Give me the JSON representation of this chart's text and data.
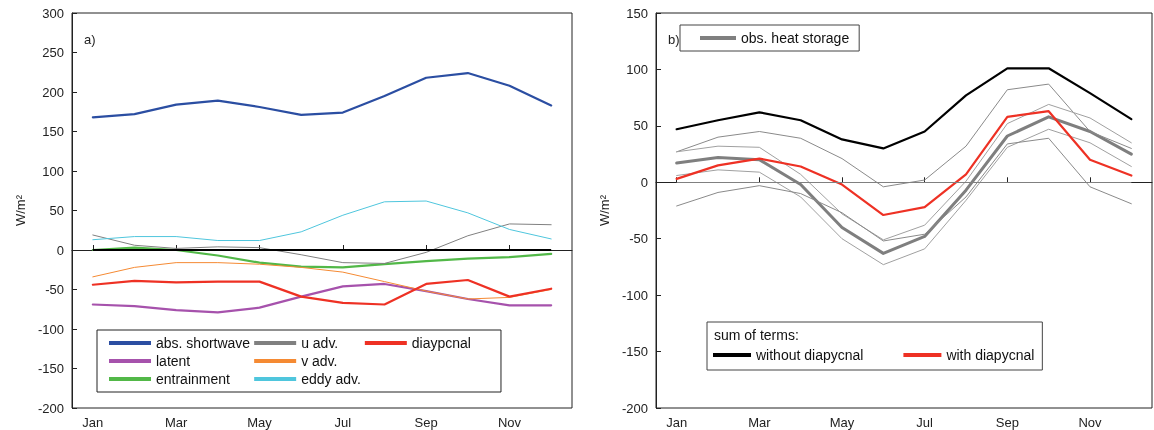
{
  "chart_data": [
    {
      "type": "line",
      "ylabel": "W/m²",
      "annotations": [
        "a)"
      ],
      "legend": "bottom",
      "categories": [
        "Jan",
        null,
        "Mar",
        null,
        "May",
        null,
        "Jul",
        null,
        "Sep",
        null,
        "Nov",
        null
      ],
      "ylim": [
        -200,
        300
      ],
      "yticks": [
        -200,
        -150,
        -100,
        -50,
        0,
        50,
        100,
        150,
        200,
        250,
        300
      ],
      "ref_lines": [
        {
          "axis": "y",
          "value": 0,
          "color": "#000000"
        }
      ],
      "series": [
        {
          "name": "abs. shortwave",
          "color": "#2b4ea2",
          "values": [
            168,
            172,
            184,
            189,
            181,
            171,
            174,
            195,
            218,
            224,
            208,
            183
          ]
        },
        {
          "name": "latent",
          "color": "#a652ac",
          "values": [
            -69,
            -71,
            -76,
            -79,
            -73,
            -59,
            -46,
            -43,
            -52,
            -62,
            -70,
            -70
          ]
        },
        {
          "name": "entrainment",
          "color": "#52b848",
          "values": [
            0,
            3,
            0,
            -7,
            -16,
            -21,
            -22,
            -18,
            -14,
            -11,
            -9,
            -5
          ]
        },
        {
          "name": "u adv.",
          "color": "#808080",
          "values": [
            19,
            6,
            2,
            4,
            3,
            -6,
            -16,
            -17,
            -3,
            18,
            33,
            32
          ]
        },
        {
          "name": "v adv.",
          "color": "#f58a33",
          "values": [
            -34,
            -22,
            -16,
            -16,
            -18,
            -22,
            -28,
            -40,
            -52,
            -62,
            -60,
            -50
          ]
        },
        {
          "name": "eddy adv.",
          "color": "#4fc6dd",
          "values": [
            13,
            17,
            17,
            12,
            12,
            23,
            44,
            61,
            62,
            47,
            26,
            14
          ]
        },
        {
          "name": "diaypcnal",
          "color": "#ee3124",
          "values": [
            -44,
            -39,
            -41,
            -40,
            -40,
            -59,
            -67,
            -69,
            -43,
            -38,
            -59,
            -49
          ]
        }
      ]
    },
    {
      "type": "line",
      "ylabel": "W/m²",
      "annotations": [
        "b)"
      ],
      "legend": "top left",
      "legend_title": "sum of terms:",
      "categories": [
        "Jan",
        null,
        "Mar",
        null,
        "May",
        null,
        "Jul",
        null,
        "Sep",
        null,
        "Nov",
        null
      ],
      "ylim": [
        -200,
        150
      ],
      "yticks": [
        -200,
        -150,
        -100,
        -50,
        0,
        50,
        100,
        150
      ],
      "ref_lines": [
        {
          "axis": "y",
          "value": 0,
          "color": "#808080"
        }
      ],
      "series": [
        {
          "name": "obs. heat storage",
          "color": "#7f7f7f",
          "values": [
            17,
            22,
            20,
            -2,
            -40,
            -63,
            -48,
            -7,
            41,
            58,
            45,
            25
          ]
        },
        {
          "color": "#8a8a8a",
          "values": [
            27,
            40,
            45,
            39,
            21,
            -4,
            2,
            32,
            82,
            87,
            45,
            30
          ]
        },
        {
          "color": "#a0a0a0",
          "values": [
            27,
            32,
            31,
            7,
            -28,
            -51,
            -38,
            1,
            52,
            69,
            57,
            35
          ]
        },
        {
          "color": "#a0a0a0",
          "values": [
            6,
            11,
            9,
            -13,
            -50,
            -73,
            -59,
            -16,
            31,
            47,
            35,
            14
          ]
        },
        {
          "color": "#8a8a8a",
          "values": [
            -21,
            -9,
            -3,
            -10,
            -27,
            -52,
            -46,
            -13,
            34,
            39,
            -4,
            -19
          ]
        },
        {
          "name": "without diapycnal",
          "color": "#000000",
          "values": [
            47,
            55,
            62,
            55,
            38,
            30,
            45,
            77,
            101,
            101,
            79,
            56
          ]
        },
        {
          "name": "with diapycnal",
          "color": "#ee3124",
          "values": [
            3,
            15,
            21,
            14,
            -2,
            -29,
            -22,
            7,
            58,
            63,
            20,
            6
          ]
        }
      ]
    }
  ]
}
